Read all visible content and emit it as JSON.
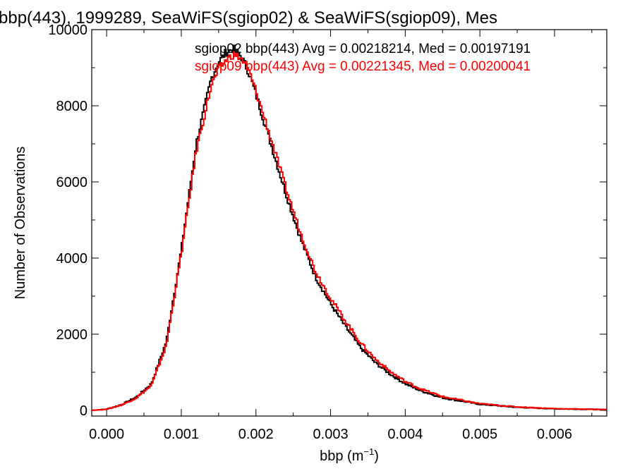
{
  "chart_data": {
    "type": "line",
    "title": "bbp(443), 1999289, SeaWiFS(sgiop02) & SeaWiFS(sgiop09), Mes",
    "xlabel_base": "bbp (m",
    "xlabel_sup": "−1",
    "xlabel_close": ")",
    "ylabel": "Number of Observations",
    "xlim": [
      -0.0002,
      0.0067
    ],
    "ylim": [
      -150,
      10000
    ],
    "xticks": [
      {
        "value": 0.0,
        "label": "0.000"
      },
      {
        "value": 0.001,
        "label": "0.001"
      },
      {
        "value": 0.002,
        "label": "0.002"
      },
      {
        "value": 0.003,
        "label": "0.003"
      },
      {
        "value": 0.004,
        "label": "0.004"
      },
      {
        "value": 0.005,
        "label": "0.005"
      },
      {
        "value": 0.006,
        "label": "0.006"
      }
    ],
    "yticks": [
      {
        "value": 0,
        "label": "0"
      },
      {
        "value": 2000,
        "label": "2000"
      },
      {
        "value": 4000,
        "label": "4000"
      },
      {
        "value": 6000,
        "label": "6000"
      },
      {
        "value": 8000,
        "label": "8000"
      },
      {
        "value": 10000,
        "label": "10000"
      }
    ],
    "grid": false,
    "legend_position": "top-right",
    "series": [
      {
        "label": "sgiop02 bbp(443) Avg = 0.00218214, Med = 0.00197191",
        "color": "#000000",
        "x": [
          -0.0002,
          0.0,
          0.0002,
          0.0004,
          0.0006,
          0.0008,
          0.001,
          0.0012,
          0.0014,
          0.0015,
          0.0016,
          0.0017,
          0.0018,
          0.0019,
          0.002,
          0.0022,
          0.0024,
          0.0026,
          0.0028,
          0.003,
          0.0032,
          0.0034,
          0.0036,
          0.0038,
          0.004,
          0.0042,
          0.0045,
          0.005,
          0.0055,
          0.006,
          0.0067
        ],
        "y": [
          0,
          30,
          150,
          350,
          700,
          1800,
          4200,
          7000,
          8700,
          9150,
          9400,
          9500,
          9300,
          8900,
          8300,
          7000,
          5700,
          4500,
          3500,
          2800,
          2200,
          1650,
          1250,
          950,
          700,
          520,
          330,
          160,
          80,
          40,
          20
        ]
      },
      {
        "label": "sgiop09 bbp(443) Avg = 0.00221345, Med = 0.00200041",
        "color": "#ff0000",
        "x": [
          -0.0002,
          0.0,
          0.0002,
          0.0004,
          0.0006,
          0.0008,
          0.001,
          0.0012,
          0.0014,
          0.0015,
          0.0016,
          0.0017,
          0.0018,
          0.0019,
          0.002,
          0.0022,
          0.0024,
          0.0026,
          0.0028,
          0.003,
          0.0032,
          0.0034,
          0.0036,
          0.0038,
          0.004,
          0.0042,
          0.0045,
          0.005,
          0.0055,
          0.006,
          0.0067
        ],
        "y": [
          0,
          30,
          140,
          330,
          650,
          1700,
          4100,
          6800,
          8500,
          8950,
          9200,
          9350,
          9250,
          8950,
          8400,
          7150,
          5850,
          4650,
          3650,
          2950,
          2350,
          1780,
          1350,
          1020,
          760,
          570,
          360,
          175,
          90,
          45,
          22
        ]
      }
    ]
  }
}
